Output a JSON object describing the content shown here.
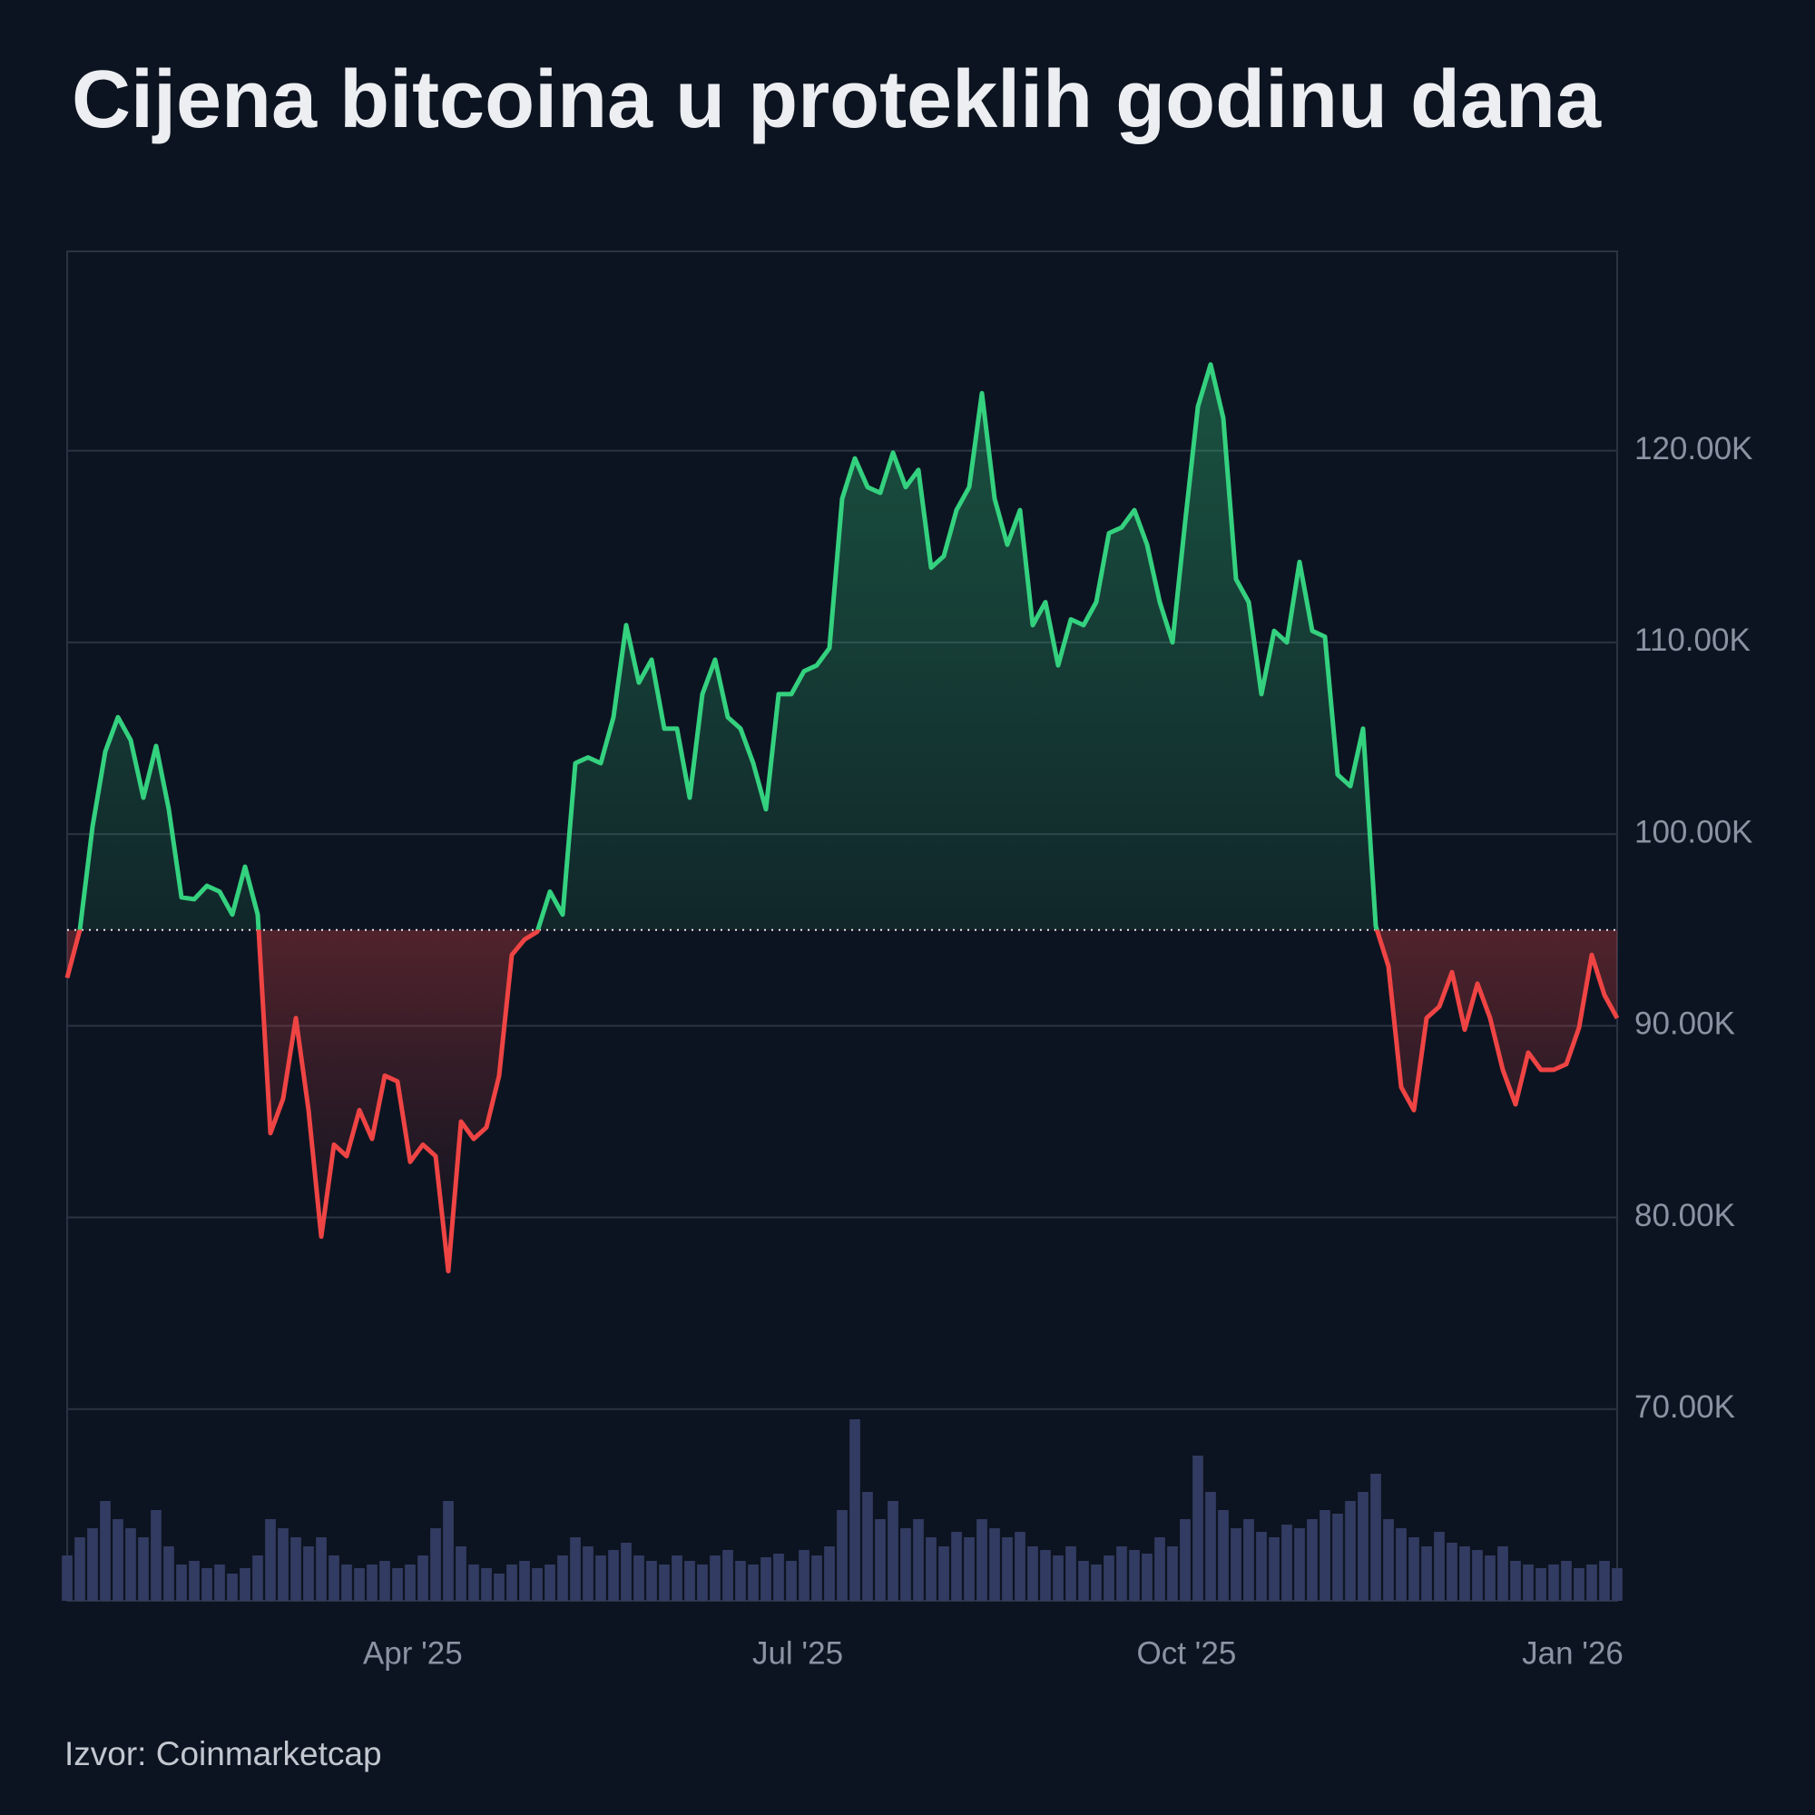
{
  "chart_data": {
    "type": "line",
    "title": "Cijena bitcoina u proteklih godinu dana",
    "source": "Izvor: Coinmarketcap",
    "xlim": [
      0,
      122
    ],
    "xticks": [
      {
        "value": 27.2,
        "label": "Apr '25"
      },
      {
        "value": 57.5,
        "label": "Jul '25"
      },
      {
        "value": 88.1,
        "label": "Oct '25"
      },
      {
        "value": 118.5,
        "label": "Jan '26"
      }
    ],
    "ylim": [
      60000,
      130400
    ],
    "yticks": [
      {
        "value": 70000,
        "label": "70.00K"
      },
      {
        "value": 80000,
        "label": "80.00K"
      },
      {
        "value": 90000,
        "label": "90.00K"
      },
      {
        "value": 100000,
        "label": "100.00K"
      },
      {
        "value": 110000,
        "label": "110.00K"
      },
      {
        "value": 120000,
        "label": "120.00K"
      }
    ],
    "grid": true,
    "baseline": 95000,
    "color_up": "#34d17f",
    "color_down": "#ef4444",
    "volume_color": "#323c62",
    "values": [
      92500,
      95000,
      100400,
      104300,
      106100,
      104900,
      101900,
      104600,
      101300,
      96700,
      96600,
      97300,
      97000,
      95800,
      98300,
      95800,
      84400,
      86200,
      90400,
      85600,
      79000,
      83800,
      83200,
      85600,
      84100,
      87400,
      87100,
      82900,
      83800,
      83200,
      77200,
      85000,
      84100,
      84700,
      87400,
      93700,
      94500,
      94900,
      97000,
      95800,
      103700,
      104000,
      103700,
      106100,
      110900,
      107900,
      109100,
      105500,
      105500,
      101900,
      107300,
      109100,
      106100,
      105500,
      103700,
      101300,
      107300,
      107300,
      108500,
      108800,
      109700,
      117500,
      119600,
      118100,
      117800,
      119900,
      118100,
      119000,
      113900,
      114500,
      116900,
      118100,
      123000,
      117500,
      115100,
      116900,
      110900,
      112100,
      108800,
      111200,
      110900,
      112100,
      115700,
      116000,
      116900,
      115100,
      112100,
      110000,
      116300,
      122300,
      124500,
      121700,
      113300,
      112100,
      107300,
      110600,
      110000,
      114200,
      110600,
      110300,
      103100,
      102500,
      105500,
      95200,
      93100,
      86800,
      85600,
      90400,
      91000,
      92800,
      89800,
      92200,
      90400,
      87700,
      85900,
      88600,
      87700,
      87700,
      88000,
      89900,
      93700,
      91600,
      90400
    ],
    "volume": [
      25,
      35,
      40,
      55,
      45,
      40,
      35,
      50,
      30,
      20,
      22,
      18,
      20,
      15,
      18,
      25,
      45,
      40,
      35,
      30,
      35,
      25,
      20,
      18,
      20,
      22,
      18,
      20,
      25,
      40,
      55,
      30,
      20,
      18,
      15,
      20,
      22,
      18,
      20,
      25,
      35,
      30,
      25,
      28,
      32,
      25,
      22,
      20,
      25,
      22,
      20,
      25,
      28,
      22,
      20,
      24,
      26,
      22,
      28,
      25,
      30,
      50,
      100,
      60,
      45,
      55,
      40,
      45,
      35,
      30,
      38,
      35,
      45,
      40,
      35,
      38,
      30,
      28,
      25,
      30,
      22,
      20,
      25,
      30,
      28,
      26,
      35,
      30,
      45,
      80,
      60,
      50,
      40,
      45,
      38,
      35,
      42,
      40,
      45,
      50,
      48,
      55,
      60,
      70,
      45,
      40,
      35,
      30,
      38,
      32,
      30,
      28,
      25,
      30,
      22,
      20,
      18,
      20,
      22,
      18,
      20,
      22,
      18
    ]
  }
}
